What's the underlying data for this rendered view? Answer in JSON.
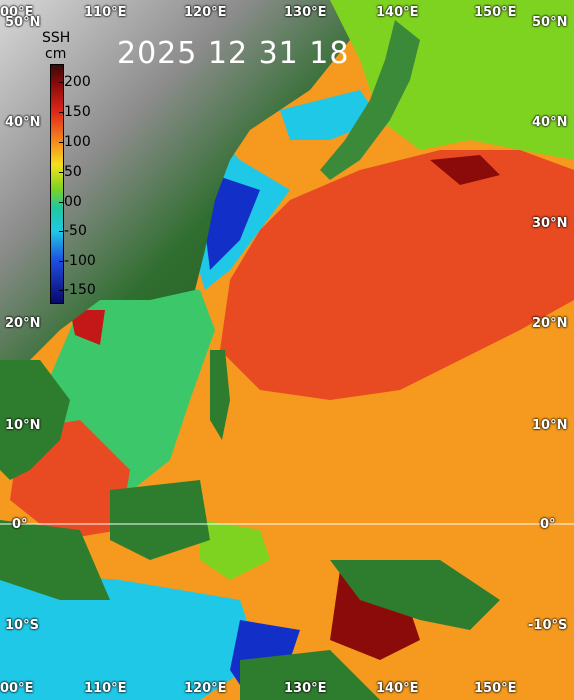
{
  "title": "2025 12 31 18",
  "colorbar": {
    "title": "SSH",
    "unit": "cm",
    "ticks": [
      "200",
      "150",
      "100",
      "50",
      "00",
      "-50",
      "-100",
      "-150"
    ],
    "range": [
      -175,
      225
    ]
  },
  "lon_labels": [
    "110°E",
    "120°E",
    "130°E",
    "140°E",
    "150°E"
  ],
  "lon_edge_labels": [
    "00°E"
  ],
  "lat_labels_left": [
    "50°N",
    "40°N",
    "20°N",
    "10°N",
    "0°",
    "10°S"
  ],
  "lat_labels_right": [
    "50°N",
    "40°N",
    "30°N",
    "20°N",
    "10°N",
    "0°",
    "-10°S"
  ],
  "colors": {
    "land_high": "#dcdcdc",
    "land_low": "#2e7d2e",
    "ocean_high": "#8b0a0a",
    "ocean_warm": "#e63c1e",
    "ocean_mid": "#f59a1e",
    "ocean_neutral": "#7ed321",
    "ocean_low": "#1ec8e6",
    "ocean_very_low": "#0a14a0"
  }
}
